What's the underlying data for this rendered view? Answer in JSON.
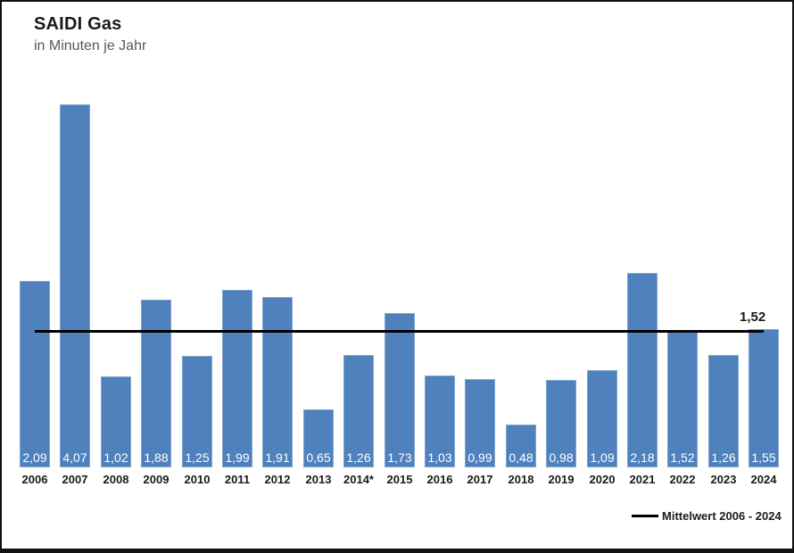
{
  "title": "SAIDI Gas",
  "subtitle": "in Minuten je Jahr",
  "colors": {
    "bar": "#4f81bd",
    "mean_line": "#000000",
    "subtitle_text": "#595959",
    "frame_border": "#111111",
    "bar_value_text": "#ffffff"
  },
  "chart_data": {
    "type": "bar",
    "title": "SAIDI Gas",
    "subtitle": "in Minuten je Jahr",
    "xlabel": "",
    "ylabel": "in Minuten je Jahr",
    "ylim": [
      0,
      4.5
    ],
    "grid": false,
    "legend_position": "bottom-right",
    "categories": [
      "2006",
      "2007",
      "2008",
      "2009",
      "2010",
      "2011",
      "2012",
      "2013",
      "2014*",
      "2015",
      "2016",
      "2017",
      "2018",
      "2019",
      "2020",
      "2021",
      "2022",
      "2023",
      "2024"
    ],
    "values": [
      2.09,
      4.07,
      1.02,
      1.88,
      1.25,
      1.99,
      1.91,
      0.65,
      1.26,
      1.73,
      1.03,
      0.99,
      0.48,
      0.98,
      1.09,
      2.18,
      1.52,
      1.26,
      1.55
    ],
    "value_labels": [
      "2,09",
      "4,07",
      "1,02",
      "1,88",
      "1,25",
      "1,99",
      "1,91",
      "0,65",
      "1,26",
      "1,73",
      "1,03",
      "0,99",
      "0,48",
      "0,98",
      "1,09",
      "2,18",
      "1,52",
      "1,26",
      "1,55"
    ],
    "mean_line": {
      "value": 1.52,
      "label": "1,52",
      "legend_label": "Mittelwert 2006 - 2024"
    }
  }
}
